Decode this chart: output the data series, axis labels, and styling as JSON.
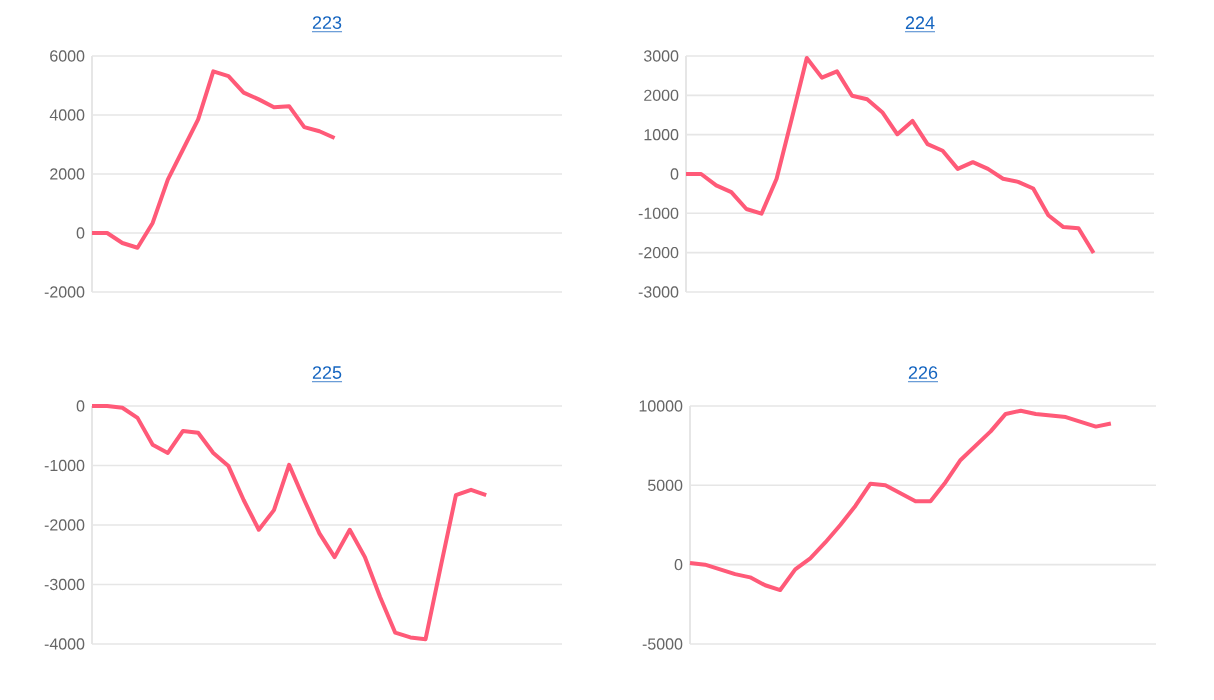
{
  "chart_data": [
    {
      "type": "line",
      "title": "223",
      "categories": [
        null,
        null,
        null,
        null,
        null,
        null,
        null,
        null,
        null,
        null,
        null,
        null,
        null,
        null,
        null,
        null,
        null,
        null,
        null,
        null,
        null,
        null,
        null,
        null,
        null,
        null,
        null,
        null,
        null,
        null,
        null,
        null
      ],
      "series": [
        {
          "color": "#ff5a78",
          "values": [
            0,
            0,
            -340,
            -500,
            340,
            1810,
            2830,
            3850,
            5480,
            5320,
            4760,
            4530,
            4260,
            4300,
            3590,
            3450,
            3220,
            null,
            null,
            null,
            null,
            null,
            null,
            null,
            null,
            null,
            null,
            null,
            null,
            null,
            null,
            null
          ]
        }
      ],
      "ylim": [
        -2000,
        6000
      ],
      "yticks": [
        -2000,
        0,
        2000,
        4000,
        6000
      ],
      "grid": "y",
      "tick_labels": "y"
    },
    {
      "type": "line",
      "title": "224",
      "categories": [
        null,
        null,
        null,
        null,
        null,
        null,
        null,
        null,
        null,
        null,
        null,
        null,
        null,
        null,
        null,
        null,
        null,
        null,
        null,
        null,
        null,
        null,
        null,
        null,
        null,
        null,
        null,
        null,
        null,
        null,
        null,
        null
      ],
      "series": [
        {
          "color": "#ff5a78",
          "values": [
            0,
            0,
            -290,
            -460,
            -890,
            -1010,
            -120,
            1400,
            2950,
            2450,
            2610,
            1990,
            1900,
            1570,
            1010,
            1350,
            760,
            590,
            130,
            300,
            130,
            -120,
            -200,
            -370,
            -1050,
            -1350,
            -1380,
            -2010,
            null,
            null,
            null,
            null
          ]
        }
      ],
      "ylim": [
        -3000,
        3000
      ],
      "yticks": [
        -3000,
        -2000,
        -1000,
        0,
        1000,
        2000,
        3000
      ],
      "grid": "y",
      "tick_labels": "y"
    },
    {
      "type": "line",
      "title": "225",
      "categories": [
        null,
        null,
        null,
        null,
        null,
        null,
        null,
        null,
        null,
        null,
        null,
        null,
        null,
        null,
        null,
        null,
        null,
        null,
        null,
        null,
        null,
        null,
        null,
        null,
        null,
        null,
        null,
        null,
        null,
        null,
        null,
        null
      ],
      "series": [
        {
          "color": "#ff5a78",
          "values": [
            0,
            0,
            -30,
            -200,
            -650,
            -790,
            -420,
            -450,
            -790,
            -1010,
            -1580,
            -2080,
            -1750,
            -990,
            -1580,
            -2140,
            -2540,
            -2080,
            -2540,
            -3210,
            -3810,
            -3890,
            -3920,
            -2700,
            -1500,
            -1410,
            -1500,
            null,
            null,
            null,
            null,
            null
          ]
        }
      ],
      "ylim": [
        -4000,
        0
      ],
      "yticks": [
        -4000,
        -3000,
        -2000,
        -1000,
        0
      ],
      "grid": "y",
      "tick_labels": "y"
    },
    {
      "type": "line",
      "title": "226",
      "categories": [
        null,
        null,
        null,
        null,
        null,
        null,
        null,
        null,
        null,
        null,
        null,
        null,
        null,
        null,
        null,
        null,
        null,
        null,
        null,
        null,
        null,
        null,
        null,
        null,
        null,
        null,
        null,
        null,
        null,
        null,
        null,
        null
      ],
      "series": [
        {
          "color": "#ff5a78",
          "values": [
            100,
            0,
            -300,
            -600,
            -800,
            -1300,
            -1600,
            -300,
            400,
            1400,
            2500,
            3700,
            5100,
            5000,
            4500,
            4000,
            4000,
            5200,
            6600,
            7500,
            8400,
            9500,
            9700,
            9500,
            9400,
            9300,
            9000,
            8700,
            8900,
            null,
            null,
            null
          ]
        }
      ],
      "ylim": [
        -5000,
        10000
      ],
      "yticks": [
        -5000,
        0,
        5000,
        10000
      ],
      "grid": "y",
      "tick_labels": "y"
    }
  ]
}
